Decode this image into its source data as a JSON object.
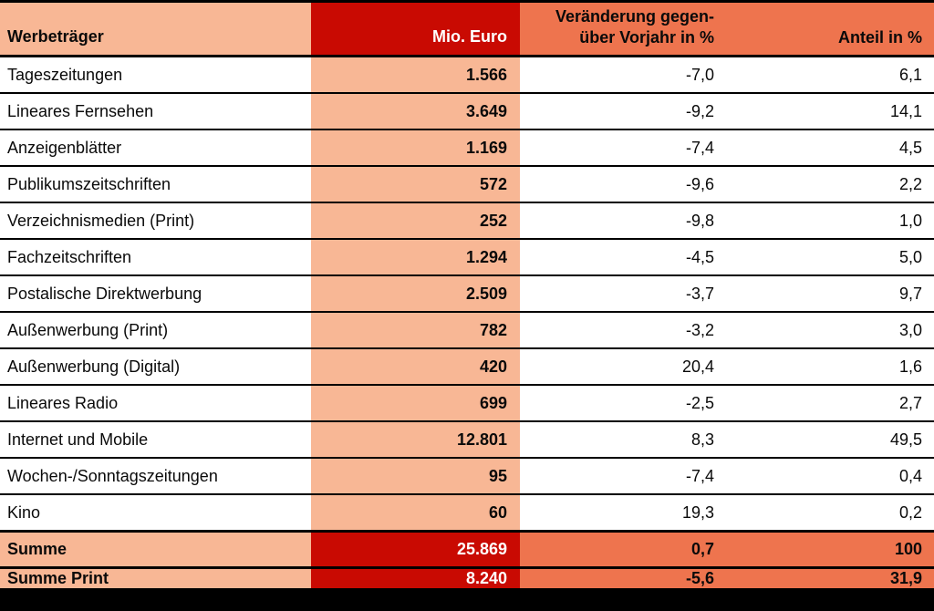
{
  "colors": {
    "salmon": "#F8B795",
    "red": "#C90A02",
    "orange": "#EE744E",
    "line": "#000000",
    "text": "#0A0A0A",
    "text_on_red": "#FFFFFF"
  },
  "table": {
    "columns": [
      {
        "id": "werbetraeger",
        "label": "Werbeträger"
      },
      {
        "id": "mio_euro",
        "label": "Mio. Euro"
      },
      {
        "id": "veraenderung_vorjahr",
        "label": "Veränderung gegen-\nüber Vorjahr in %"
      },
      {
        "id": "anteil",
        "label": "Anteil in %"
      }
    ],
    "rows": [
      {
        "label": "Tageszeitungen",
        "mio_euro": "1.566",
        "change_pct": "-7,0",
        "share_pct": "6,1"
      },
      {
        "label": "Lineares Fernsehen",
        "mio_euro": "3.649",
        "change_pct": "-9,2",
        "share_pct": "14,1"
      },
      {
        "label": "Anzeigenblätter",
        "mio_euro": "1.169",
        "change_pct": "-7,4",
        "share_pct": "4,5"
      },
      {
        "label": "Publikumszeitschriften",
        "mio_euro": "572",
        "change_pct": "-9,6",
        "share_pct": "2,2"
      },
      {
        "label": "Verzeichnismedien (Print)",
        "mio_euro": "252",
        "change_pct": "-9,8",
        "share_pct": "1,0"
      },
      {
        "label": "Fachzeitschriften",
        "mio_euro": "1.294",
        "change_pct": "-4,5",
        "share_pct": "5,0"
      },
      {
        "label": "Postalische Direktwerbung",
        "mio_euro": "2.509",
        "change_pct": "-3,7",
        "share_pct": "9,7"
      },
      {
        "label": "Außenwerbung (Print)",
        "mio_euro": "782",
        "change_pct": "-3,2",
        "share_pct": "3,0"
      },
      {
        "label": "Außenwerbung (Digital)",
        "mio_euro": "420",
        "change_pct": "20,4",
        "share_pct": "1,6"
      },
      {
        "label": "Lineares Radio",
        "mio_euro": "699",
        "change_pct": "-2,5",
        "share_pct": "2,7"
      },
      {
        "label": "Internet und Mobile",
        "mio_euro": "12.801",
        "change_pct": "8,3",
        "share_pct": "49,5"
      },
      {
        "label": "Wochen-/Sonntagszeitungen",
        "mio_euro": "95",
        "change_pct": "-7,4",
        "share_pct": "0,4"
      },
      {
        "label": "Kino",
        "mio_euro": "60",
        "change_pct": "19,3",
        "share_pct": "0,2"
      }
    ],
    "summary_rows": [
      {
        "label": "Summe",
        "mio_euro": "25.869",
        "change_pct": "0,7",
        "share_pct": "100"
      },
      {
        "label": "Summe Print",
        "mio_euro": "8.240",
        "change_pct": "-5,6",
        "share_pct": "31,9"
      }
    ]
  },
  "chart_data": {
    "type": "table",
    "title": "",
    "columns": [
      "Werbeträger",
      "Mio. Euro",
      "Veränderung gegenüber Vorjahr in %",
      "Anteil in %"
    ],
    "rows": [
      [
        "Tageszeitungen",
        1566,
        -7.0,
        6.1
      ],
      [
        "Lineares Fernsehen",
        3649,
        -9.2,
        14.1
      ],
      [
        "Anzeigenblätter",
        1169,
        -7.4,
        4.5
      ],
      [
        "Publikumszeitschriften",
        572,
        -9.6,
        2.2
      ],
      [
        "Verzeichnismedien (Print)",
        252,
        -9.8,
        1.0
      ],
      [
        "Fachzeitschriften",
        1294,
        -4.5,
        5.0
      ],
      [
        "Postalische Direktwerbung",
        2509,
        -3.7,
        9.7
      ],
      [
        "Außenwerbung (Print)",
        782,
        -3.2,
        3.0
      ],
      [
        "Außenwerbung (Digital)",
        420,
        20.4,
        1.6
      ],
      [
        "Lineares Radio",
        699,
        -2.5,
        2.7
      ],
      [
        "Internet und Mobile",
        12801,
        8.3,
        49.5
      ],
      [
        "Wochen-/Sonntagszeitungen",
        95,
        -7.4,
        0.4
      ],
      [
        "Kino",
        60,
        19.3,
        0.2
      ],
      [
        "Summe",
        25869,
        0.7,
        100
      ],
      [
        "Summe Print",
        8240,
        -5.6,
        31.9
      ]
    ]
  }
}
